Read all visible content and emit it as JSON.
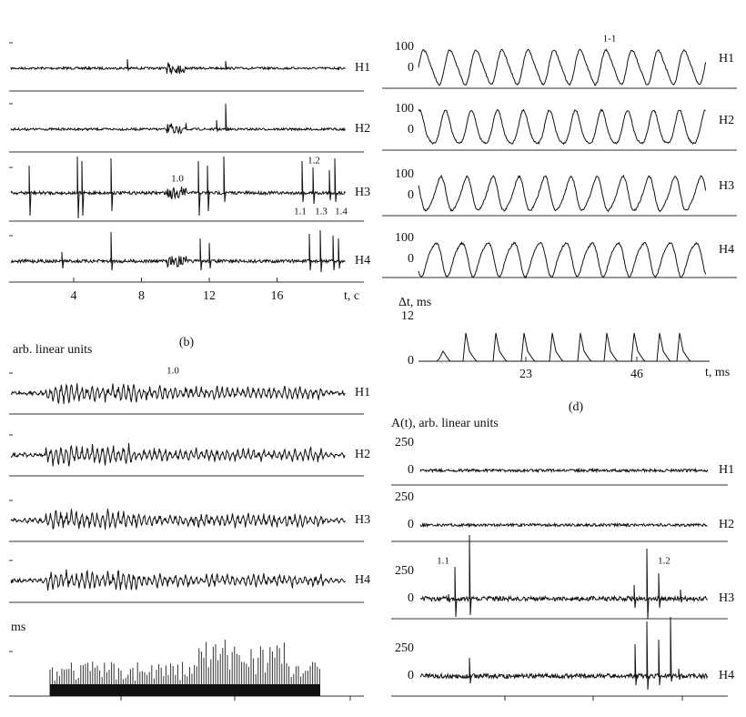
{
  "panel_a": {
    "traces": [
      "H1",
      "H2",
      "H3",
      "H4"
    ],
    "xticks": [
      4,
      8,
      12,
      16
    ],
    "xlabel": "t, c",
    "annotations": [
      "1.0",
      "1.2",
      "1.1",
      "1.3",
      "1.4"
    ],
    "caption": "(b)"
  },
  "panel_c": {
    "ylabel": "arb. linear units",
    "annotation": "1.0",
    "traces": [
      "H1",
      "H2",
      "H3",
      "H4"
    ],
    "bar_label": "ms"
  },
  "panel_d": {
    "marker": "1-1",
    "traces": [
      "H1",
      "H2",
      "H3",
      "H4"
    ],
    "yticks": [
      0,
      100
    ],
    "dt_label": "Δt, ms",
    "dt_yticks": [
      0,
      12
    ],
    "xticks": [
      23,
      46
    ],
    "xlabel": "t, ms",
    "caption": "(d)"
  },
  "panel_e": {
    "ylabel": "A(t), arb. linear units",
    "traces": [
      "H1",
      "H2",
      "H3",
      "H4"
    ],
    "yticks": [
      0,
      250
    ],
    "annotations": [
      "1.1",
      "1.2"
    ]
  }
}
